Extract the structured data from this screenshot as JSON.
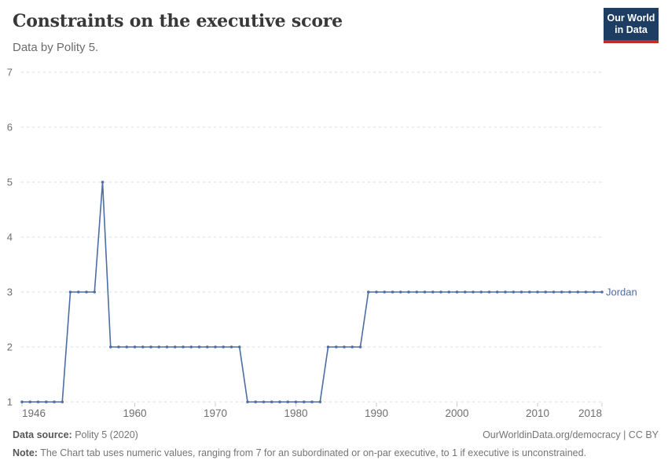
{
  "header": {
    "title": "Constraints on the executive score",
    "subtitle": "Data by Polity 5."
  },
  "logo": {
    "line1": "Our World",
    "line2": "in Data",
    "bg_color": "#1d3d63",
    "accent_color": "#be2d28"
  },
  "chart_data": {
    "type": "line",
    "title": "Constraints on the executive score",
    "xlabel": "",
    "ylabel": "",
    "x_start": 1946,
    "x_end": 2018,
    "y_axis": {
      "min": 1,
      "max": 7,
      "ticks": [
        1,
        2,
        3,
        4,
        5,
        6,
        7
      ]
    },
    "x_axis": {
      "ticks": [
        1946,
        1960,
        1970,
        1980,
        1990,
        2000,
        2010,
        2018
      ]
    },
    "grid": "dashed-horizontal",
    "legend_position": "end-of-line-label",
    "grid_color": "#dcdcdc",
    "tick_color": "#c9c9c9",
    "series": [
      {
        "name": "Jordan",
        "color": "#4c6da5",
        "values": [
          1,
          1,
          1,
          1,
          1,
          1,
          3,
          3,
          3,
          3,
          5,
          2,
          2,
          2,
          2,
          2,
          2,
          2,
          2,
          2,
          2,
          2,
          2,
          2,
          2,
          2,
          2,
          2,
          1,
          1,
          1,
          1,
          1,
          1,
          1,
          1,
          1,
          1,
          2,
          2,
          2,
          2,
          2,
          3,
          3,
          3,
          3,
          3,
          3,
          3,
          3,
          3,
          3,
          3,
          3,
          3,
          3,
          3,
          3,
          3,
          3,
          3,
          3,
          3,
          3,
          3,
          3,
          3,
          3,
          3,
          3,
          3,
          3
        ]
      }
    ],
    "segments_summary": [
      {
        "years": "1946-1951",
        "value": 1
      },
      {
        "years": "1952-1955",
        "value": 3
      },
      {
        "years": "1956",
        "value": 5
      },
      {
        "years": "1957-1973",
        "value": 2
      },
      {
        "years": "1974-1983",
        "value": 1
      },
      {
        "years": "1984-1988",
        "value": 2
      },
      {
        "years": "1989-2018",
        "value": 3
      }
    ]
  },
  "footer": {
    "source_label": "Data source:",
    "source_value": "Polity 5 (2020)",
    "attribution": "OurWorldinData.org/democracy | CC BY",
    "note_label": "Note:",
    "note_text": "The Chart tab uses numeric values, ranging from 7 for an subordinated or on-par executive, to 1 if executive is unconstrained."
  }
}
